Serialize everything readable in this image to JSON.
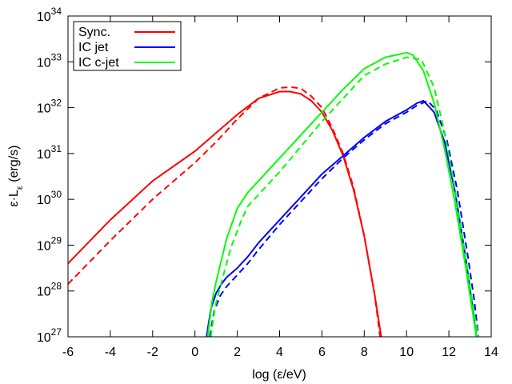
{
  "chart_data": {
    "type": "line",
    "title": "",
    "xlabel": "log (ε/eV)",
    "ylabel": {
      "prefix": "ε·L",
      "subscript": "ε",
      "suffix": " (erg/s)"
    },
    "xlim": [
      -6,
      14
    ],
    "ylim_log10": [
      27,
      34
    ],
    "x_ticks": [
      -6,
      -4,
      -2,
      0,
      2,
      4,
      6,
      8,
      10,
      12,
      14
    ],
    "x_tick_labels": [
      "-6",
      "-4",
      "-2",
      "0",
      "2",
      "4",
      "6",
      "8",
      "10",
      "12",
      "14"
    ],
    "y_tick_exponents": [
      27,
      28,
      29,
      30,
      31,
      32,
      33,
      34
    ],
    "y_tick_labels": [
      {
        "base": "10",
        "exp": "27"
      },
      {
        "base": "10",
        "exp": "28"
      },
      {
        "base": "10",
        "exp": "29"
      },
      {
        "base": "10",
        "exp": "30"
      },
      {
        "base": "10",
        "exp": "31"
      },
      {
        "base": "10",
        "exp": "32"
      },
      {
        "base": "10",
        "exp": "33"
      },
      {
        "base": "10",
        "exp": "34"
      }
    ],
    "legend": [
      {
        "label": "Sync.",
        "color": "#ff0000"
      },
      {
        "label": "IC jet",
        "color": "#0000ff"
      },
      {
        "label": "IC c-jet",
        "color": "#00ff00"
      }
    ],
    "legend_position": "top-left",
    "series": [
      {
        "name": "Sync. solid",
        "color": "#ff0000",
        "dash": "solid",
        "x": [
          -6,
          -4,
          -2,
          0,
          1,
          2,
          3,
          4,
          4.5,
          5,
          5.5,
          6,
          6.5,
          7,
          7.5,
          8,
          8.5,
          8.8
        ],
        "y": [
          28.6,
          29.55,
          30.4,
          31.05,
          31.45,
          31.85,
          32.2,
          32.35,
          32.35,
          32.3,
          32.15,
          31.9,
          31.5,
          30.95,
          30.2,
          29.2,
          27.9,
          27
        ]
      },
      {
        "name": "Sync. dashed",
        "color": "#ff0000",
        "dash": "dashed",
        "x": [
          -6,
          -4,
          -2,
          0,
          1,
          2,
          3,
          4,
          4.5,
          5,
          5.5,
          6,
          6.5,
          7,
          7.5,
          8,
          8.5,
          8.75
        ],
        "y": [
          28.15,
          29.1,
          30.0,
          30.8,
          31.25,
          31.75,
          32.2,
          32.43,
          32.45,
          32.42,
          32.25,
          32.0,
          31.55,
          31.0,
          30.25,
          29.2,
          27.9,
          27
        ]
      },
      {
        "name": "IC jet solid",
        "color": "#0000ff",
        "dash": "solid",
        "x": [
          0.55,
          0.75,
          1.0,
          1.25,
          1.5,
          2,
          2.5,
          3,
          4,
          5,
          6,
          7,
          8,
          9,
          10,
          10.5,
          10.8,
          11.3,
          11.8,
          12.3,
          12.8,
          13.1,
          13.3
        ],
        "y": [
          27,
          27.6,
          27.95,
          28.15,
          28.3,
          28.5,
          28.75,
          29.05,
          29.55,
          30.05,
          30.55,
          30.95,
          31.35,
          31.7,
          31.95,
          32.1,
          32.15,
          31.9,
          31.25,
          30.15,
          28.7,
          27.7,
          27
        ]
      },
      {
        "name": "IC jet dashed",
        "color": "#0000ff",
        "dash": "dashed",
        "x": [
          0.7,
          0.9,
          1.2,
          1.5,
          2,
          2.5,
          3,
          4,
          5,
          6,
          7,
          8,
          9,
          10,
          10.5,
          11.0,
          11.4,
          11.9,
          12.4,
          12.9,
          13.2,
          13.4
        ],
        "y": [
          27,
          27.55,
          27.9,
          28.1,
          28.35,
          28.6,
          28.9,
          29.45,
          29.95,
          30.45,
          30.9,
          31.3,
          31.65,
          31.9,
          32.05,
          32.15,
          31.95,
          31.3,
          30.2,
          28.75,
          27.8,
          27
        ]
      },
      {
        "name": "IC c-jet solid",
        "color": "#00ff00",
        "dash": "solid",
        "x": [
          0.6,
          0.8,
          1.0,
          1.5,
          2,
          2.5,
          3,
          4,
          5,
          6,
          7,
          8,
          9,
          10,
          10.3,
          10.8,
          11.3,
          11.8,
          12.3,
          12.8,
          13.1,
          13.3
        ],
        "y": [
          27,
          27.75,
          28.2,
          29.15,
          29.8,
          30.15,
          30.4,
          30.9,
          31.4,
          31.9,
          32.4,
          32.85,
          33.1,
          33.2,
          33.15,
          32.8,
          32.1,
          31.1,
          29.9,
          28.5,
          27.6,
          27
        ]
      },
      {
        "name": "IC c-jet dashed",
        "color": "#00ff00",
        "dash": "dashed",
        "x": [
          0.75,
          0.95,
          1.2,
          1.7,
          2.2,
          2.5,
          3,
          4,
          5,
          6,
          7,
          8,
          9,
          10,
          10.7,
          11.3,
          11.8,
          12.3,
          12.8,
          13.2,
          13.4
        ],
        "y": [
          27,
          27.65,
          28.1,
          28.95,
          29.55,
          29.85,
          30.1,
          30.6,
          31.15,
          31.7,
          32.2,
          32.7,
          32.95,
          33.1,
          33.05,
          32.45,
          31.45,
          30.2,
          28.7,
          27.5,
          27
        ]
      }
    ]
  }
}
